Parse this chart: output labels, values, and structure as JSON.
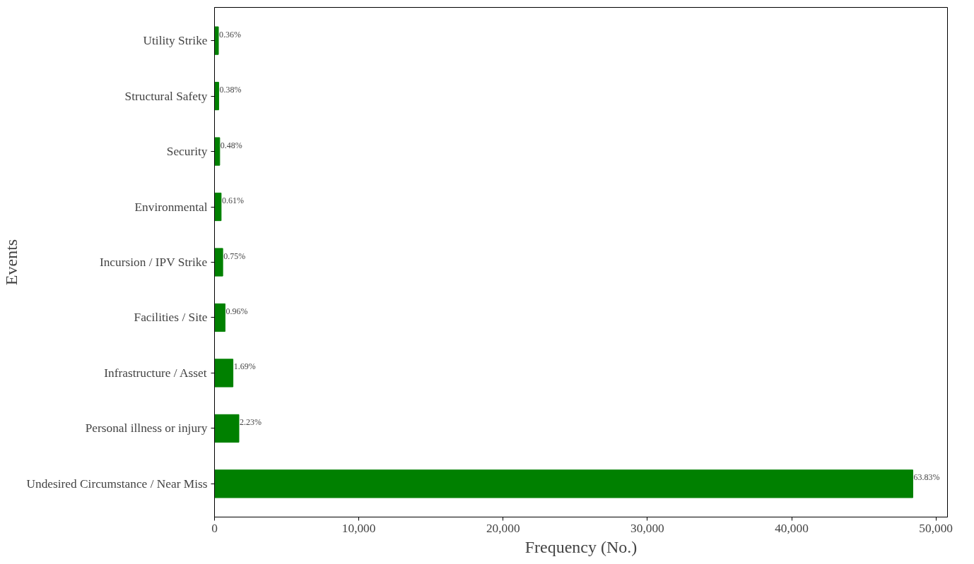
{
  "chart_data": {
    "type": "bar",
    "orientation": "horizontal",
    "xlabel": "Frequency (No.)",
    "ylabel": "Events",
    "categories": [
      "Utility Strike",
      "Structural Safety",
      "Security",
      "Environmental",
      "Incursion / IPV Strike",
      "Facilities / Site",
      "Infrastructure / Asset",
      "Personal illness or injury",
      "Undesired Circumstance / Near Miss"
    ],
    "values": [
      270,
      290,
      360,
      460,
      570,
      730,
      1280,
      1690,
      48400
    ],
    "annotations": [
      {
        "text": "0.36%",
        "x": 270,
        "y": "Utility Strike"
      },
      {
        "text": "0.38%",
        "x": 290,
        "y": "Structural Safety"
      },
      {
        "text": "0.48%",
        "x": 360,
        "y": "Security"
      },
      {
        "text": "0.61%",
        "x": 460,
        "y": "Environmental"
      },
      {
        "text": "0.75%",
        "x": 570,
        "y": "Incursion / IPV Strike"
      },
      {
        "text": "0.96%",
        "x": 730,
        "y": "Facilities / Site"
      },
      {
        "text": "1.69%",
        "x": 1280,
        "y": "Infrastructure / Asset"
      },
      {
        "text": "2.23%",
        "x": 1690,
        "y": "Personal illness or injury"
      },
      {
        "text": "63.83%",
        "x": 48400,
        "y": "Undesired Circumstance / Near Miss"
      }
    ],
    "color": "#008000",
    "xlim": [
      0,
      50800
    ],
    "xticks": [
      {
        "value": 0,
        "label": "0"
      },
      {
        "value": 10000,
        "label": "10,000"
      },
      {
        "value": 20000,
        "label": "20,000"
      },
      {
        "value": 30000,
        "label": "30,000"
      },
      {
        "value": 40000,
        "label": "40,000"
      },
      {
        "value": 50000,
        "label": "50,000"
      }
    ],
    "grid": false
  }
}
